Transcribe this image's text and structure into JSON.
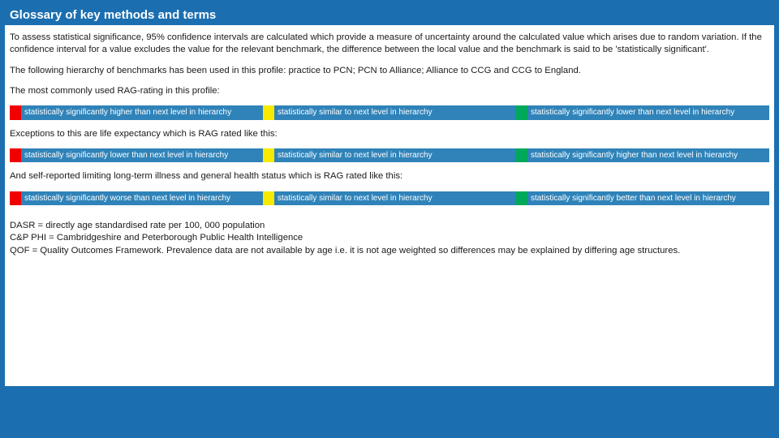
{
  "colors": {
    "brand": "#1b6fb0",
    "rag_label_bg": "#2f83b9",
    "red": "#f20000",
    "yellow": "#f7e900",
    "green": "#00a85a",
    "text": "#1a1a1a",
    "white": "#ffffff"
  },
  "header": {
    "title": "Glossary of key methods and terms"
  },
  "paragraphs": {
    "p1": "To assess statistical significance, 95% confidence intervals are calculated which provide a measure of uncertainty around the calculated value which arises due to random variation. If the confidence interval for a value excludes the value for the relevant benchmark, the difference between the local value and the benchmark is said to be 'statistically significant'.",
    "p2": "The following hierarchy of benchmarks has been used in this profile: practice to PCN; PCN to Alliance; Alliance to CCG and CCG to England.",
    "p3": "The most commonly used RAG-rating in this profile:",
    "p4": "Exceptions to this are life expectancy which is RAG rated like this:",
    "p5": "And self-reported limiting long-term illness and general health status which is RAG rated like this:"
  },
  "rag1": {
    "red": {
      "color": "#f20000",
      "label": "statistically significantly higher than next level in hierarchy"
    },
    "yellow": {
      "color": "#f7e900",
      "label": "statistically similar to next level in hierarchy"
    },
    "green": {
      "color": "#00a85a",
      "label": "statistically significantly lower than next level in hierarchy"
    }
  },
  "rag2": {
    "red": {
      "color": "#f20000",
      "label": "statistically significantly lower than next level in hierarchy"
    },
    "yellow": {
      "color": "#f7e900",
      "label": "statistically similar to next level in hierarchy"
    },
    "green": {
      "color": "#00a85a",
      "label": "statistically significantly higher than next level in hierarchy"
    }
  },
  "rag3": {
    "red": {
      "color": "#f20000",
      "label": "statistically significantly worse than next level in hierarchy"
    },
    "yellow": {
      "color": "#f7e900",
      "label": "statistically similar to next level in hierarchy"
    },
    "green": {
      "color": "#00a85a",
      "label": "statistically significantly better than next level in hierarchy"
    }
  },
  "definitions": {
    "d1": "DASR = directly age standardised rate per 100, 000 population",
    "d2": "C&P PHI = Cambridgeshire and Peterborough Public Health Intelligence",
    "d3": "QOF = Quality Outcomes Framework. Prevalence data are not available by age i.e. it is not age weighted so differences may be explained by differing age structures."
  }
}
